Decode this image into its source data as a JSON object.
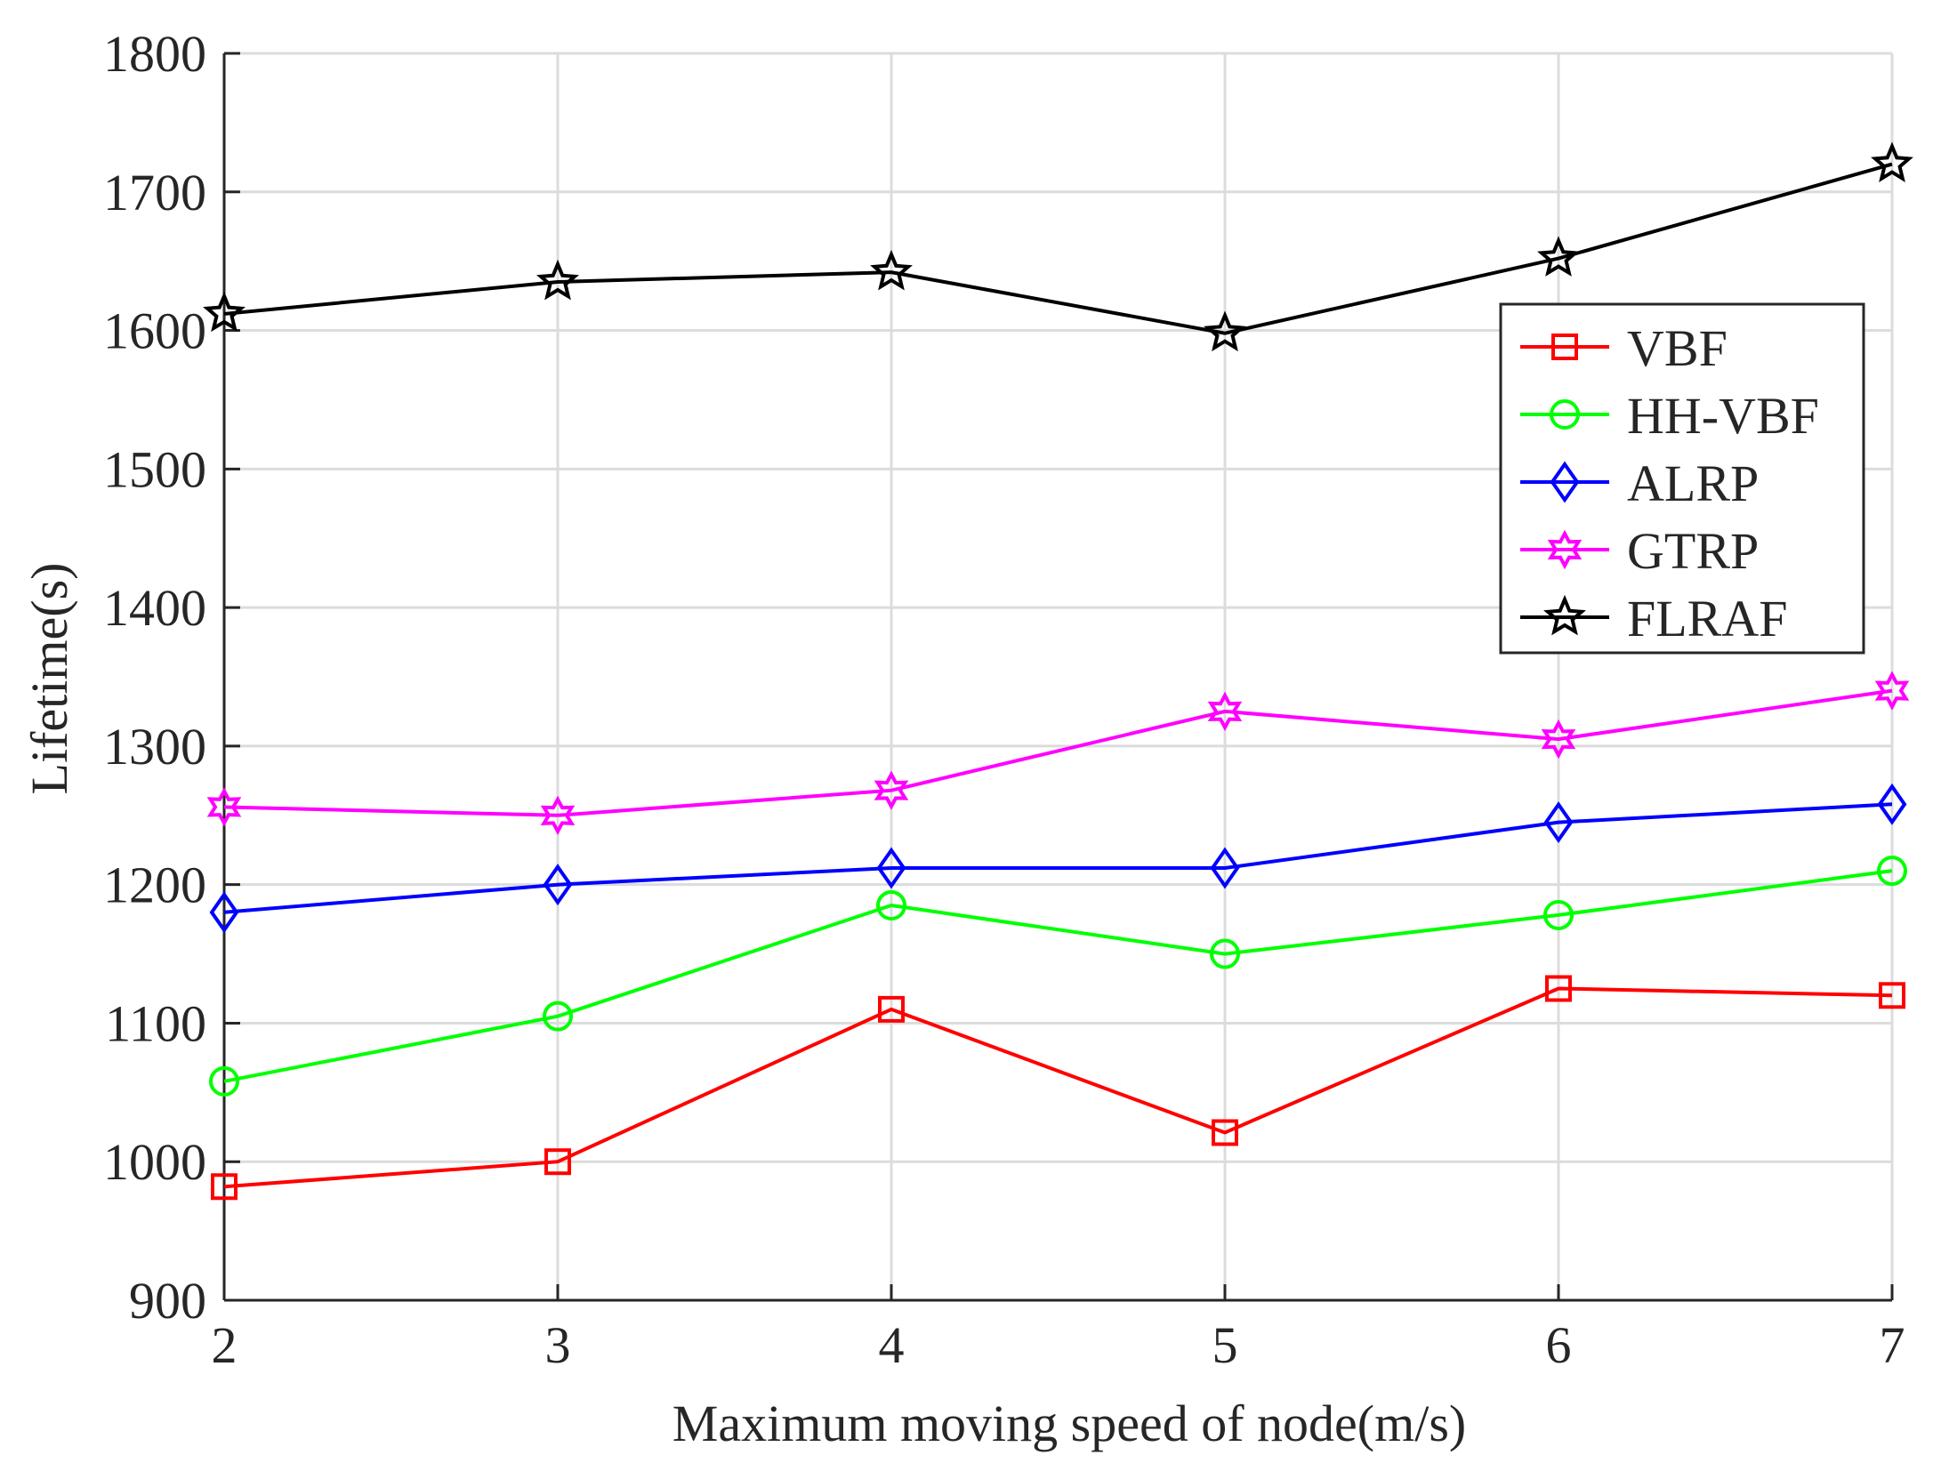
{
  "chart_data": {
    "type": "line",
    "title": "",
    "xlabel": "Maximum moving speed of node(m/s)",
    "ylabel": "Lifetime(s)",
    "x": [
      2,
      3,
      4,
      5,
      6,
      7
    ],
    "xlim": [
      2,
      7
    ],
    "ylim": [
      900,
      1800
    ],
    "xticks": [
      2,
      3,
      4,
      5,
      6,
      7
    ],
    "yticks": [
      900,
      1000,
      1100,
      1200,
      1300,
      1400,
      1500,
      1600,
      1700,
      1800
    ],
    "grid": true,
    "legend_position": "upper-right",
    "series": [
      {
        "name": "VBF",
        "color": "#ff0000",
        "marker": "square",
        "values": [
          982,
          1000,
          1110,
          1021,
          1125,
          1120
        ]
      },
      {
        "name": "HH-VBF",
        "color": "#00ff00",
        "marker": "circle",
        "values": [
          1058,
          1105,
          1185,
          1150,
          1178,
          1210
        ]
      },
      {
        "name": "ALRP",
        "color": "#0000ff",
        "marker": "diamond",
        "values": [
          1180,
          1200,
          1212,
          1212,
          1245,
          1258
        ]
      },
      {
        "name": "GTRP",
        "color": "#ff00ff",
        "marker": "hexagram",
        "values": [
          1256,
          1250,
          1268,
          1325,
          1305,
          1340
        ]
      },
      {
        "name": "FLRAF",
        "color": "#000000",
        "marker": "pentagram",
        "values": [
          1612,
          1635,
          1642,
          1598,
          1652,
          1720
        ]
      }
    ]
  }
}
